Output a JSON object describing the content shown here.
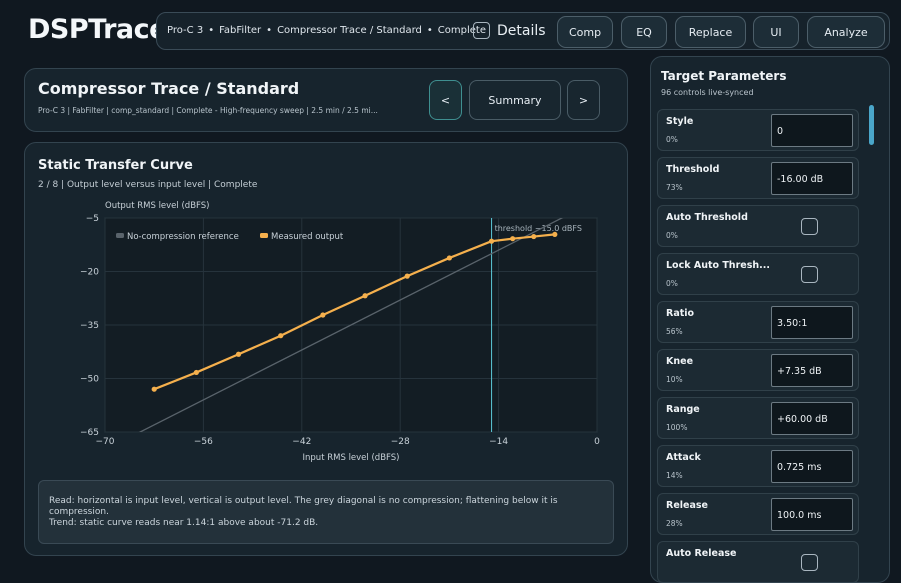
{
  "app": {
    "brand": "DSPTrace"
  },
  "topbar": {
    "crumbs": [
      "Pro-C 3",
      "FabFilter",
      "Compressor Trace / Standard",
      "Complete"
    ],
    "details_label": "Details",
    "buttons": [
      "Comp",
      "EQ",
      "Replace",
      "UI",
      "Analyze"
    ]
  },
  "header": {
    "title": "Compressor Trace  /  Standard",
    "subtitle": "Pro-C 3  |  FabFilter  |  comp_standard  |  Complete - High-frequency sweep  |  2.5 min / 2.5 mi...",
    "prev_label": "<",
    "summary_label": "Summary",
    "next_label": ">"
  },
  "chart_panel": {
    "title": "Static Transfer Curve",
    "subtitle": "2 / 8  |  Output level versus input level  |  Complete",
    "read_line1": "Read: horizontal is input level, vertical is output level. The grey diagonal is no compression; flattening below it is compression.",
    "read_line2": "Trend: static curve reads near 1.14:1 above about -71.2 dB."
  },
  "chart_data": {
    "type": "line",
    "title": "",
    "xlabel": "Input RMS level (dBFS)",
    "ylabel": "Output RMS level (dBFS)",
    "xlim": [
      -70,
      0
    ],
    "ylim": [
      -65,
      -5
    ],
    "xticks": [
      -70,
      -56,
      -42,
      -28,
      -14,
      0
    ],
    "yticks": [
      -5,
      -20,
      -35,
      -50,
      -65
    ],
    "grid": true,
    "legend_position": "top-left",
    "series": [
      {
        "name": "No-compression reference",
        "color": "#59636b",
        "x": [
          -70,
          0
        ],
        "y": [
          -70,
          0
        ]
      },
      {
        "name": "Measured output",
        "color": "#f5b04d",
        "x": [
          -63,
          -57,
          -51,
          -45,
          -39,
          -33,
          -27,
          -21,
          -15,
          -12,
          -9,
          -6
        ],
        "y": [
          -53,
          -48.3,
          -43.2,
          -38,
          -32.2,
          -26.8,
          -21.3,
          -16.2,
          -11.5,
          -10.8,
          -10.2,
          -9.6
        ]
      }
    ],
    "annotations": [
      {
        "type": "vline",
        "x": -15,
        "text": "threshold -15.0 dBFS",
        "color": "#5bc8d8"
      }
    ]
  },
  "right_panel": {
    "title": "Target Parameters",
    "subtitle": "96 controls live-synced",
    "params": [
      {
        "name": "Style",
        "pct": "0%",
        "kind": "value",
        "value": "0"
      },
      {
        "name": "Threshold",
        "pct": "73%",
        "kind": "value",
        "value": "-16.00 dB"
      },
      {
        "name": "Auto Threshold",
        "pct": "0%",
        "kind": "check"
      },
      {
        "name": "Lock Auto Thresh...",
        "pct": "0%",
        "kind": "check"
      },
      {
        "name": "Ratio",
        "pct": "56%",
        "kind": "value",
        "value": "3.50:1"
      },
      {
        "name": "Knee",
        "pct": "10%",
        "kind": "value",
        "value": "+7.35 dB"
      },
      {
        "name": "Range",
        "pct": "100%",
        "kind": "value",
        "value": "+60.00 dB"
      },
      {
        "name": "Attack",
        "pct": "14%",
        "kind": "value",
        "value": "0.725 ms"
      },
      {
        "name": "Release",
        "pct": "28%",
        "kind": "value",
        "value": "100.0 ms"
      },
      {
        "name": "Auto Release",
        "pct": "",
        "kind": "check"
      }
    ]
  }
}
